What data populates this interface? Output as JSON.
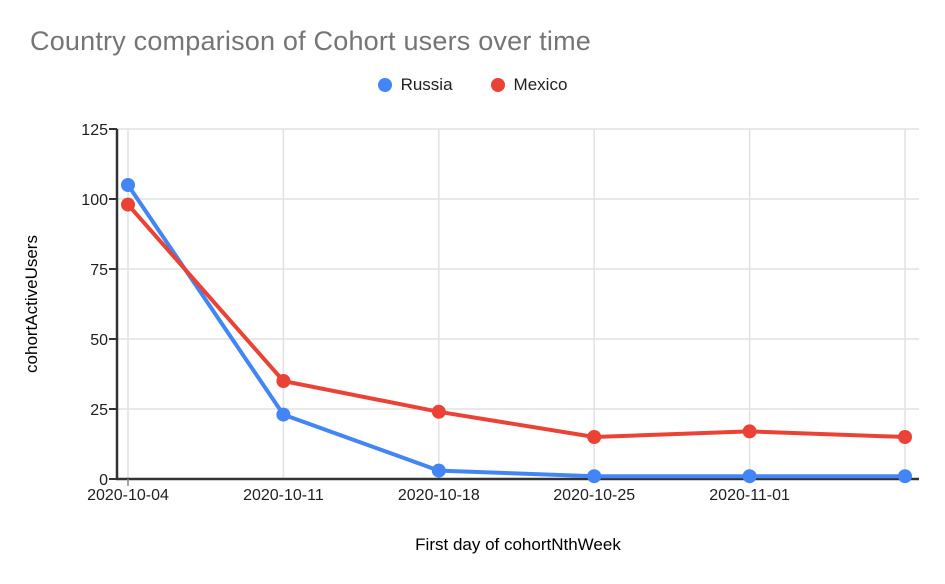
{
  "header": {
    "title": "Country comparison of Cohort users over time"
  },
  "legend": {
    "items": [
      {
        "label": "Russia",
        "color": "#4285F4"
      },
      {
        "label": "Mexico",
        "color": "#EA4335"
      }
    ]
  },
  "chart_data": {
    "type": "line",
    "title": "Country comparison of Cohort users over time",
    "xlabel": "First day of cohortNthWeek",
    "ylabel": "cohortActiveUsers",
    "categories": [
      "2020-10-04",
      "2020-10-11",
      "2020-10-18",
      "2020-10-25",
      "2020-11-01",
      ""
    ],
    "series": [
      {
        "name": "Russia",
        "color": "#4285F4",
        "values": [
          105,
          23,
          3,
          1,
          1,
          1
        ]
      },
      {
        "name": "Mexico",
        "color": "#EA4335",
        "values": [
          98,
          35,
          24,
          15,
          17,
          15
        ]
      }
    ],
    "ylim": [
      0,
      125
    ],
    "yticks": [
      0,
      25,
      50,
      75,
      100,
      125
    ],
    "grid": true,
    "legend_position": "top",
    "colors": {
      "title_text": "#757575",
      "axis_text": "#1f1f1f",
      "gridline": "#e2e2e2",
      "axis_line": "#333333"
    }
  }
}
